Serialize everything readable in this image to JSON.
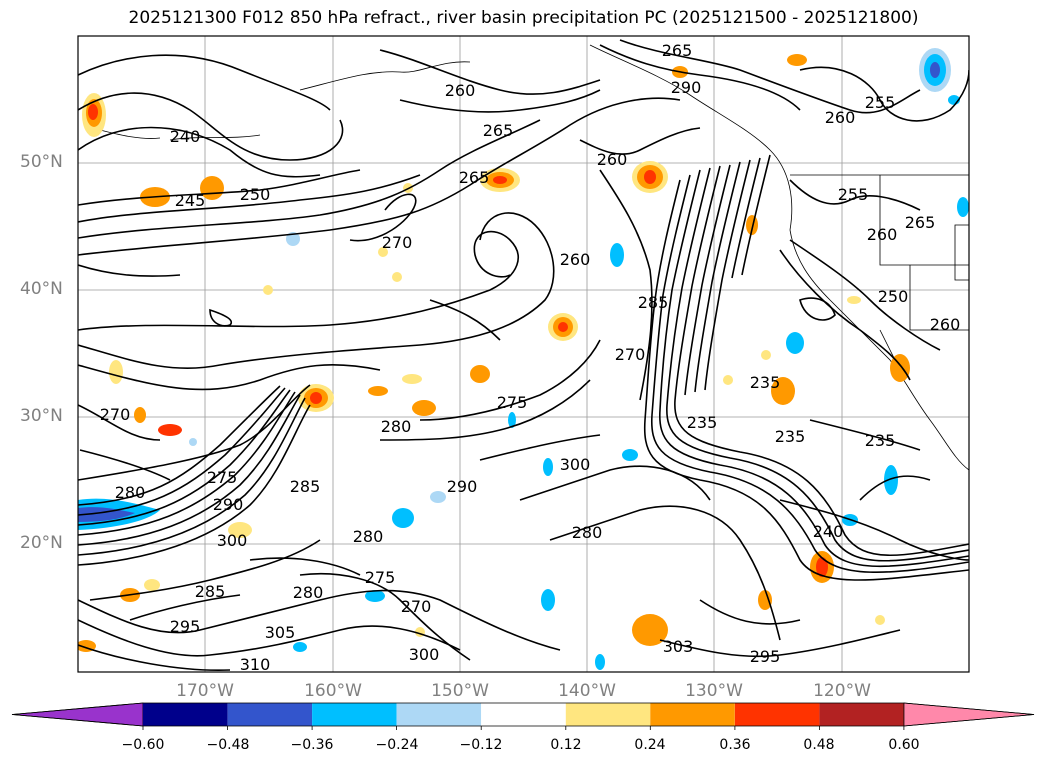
{
  "title": "2025121300 F012 850 hPa refract., river basin precipitation PC (2025121500 - 2025121800)",
  "lat_labels": [
    "50°N",
    "40°N",
    "30°N",
    "20°N"
  ],
  "lon_labels": [
    "170°W",
    "160°W",
    "150°W",
    "140°W",
    "130°W",
    "120°W"
  ],
  "contour_labels": [
    "265",
    "260",
    "265",
    "255",
    "260",
    "270",
    "240",
    "245",
    "250",
    "265",
    "260",
    "260",
    "255",
    "270",
    "280",
    "285",
    "275",
    "275",
    "270",
    "280",
    "285",
    "290",
    "300",
    "280",
    "280",
    "280",
    "285",
    "275",
    "270",
    "290",
    "295",
    "300",
    "305",
    "310",
    "300",
    "235",
    "235",
    "235",
    "235",
    "240",
    "250",
    "260",
    "265",
    "260",
    "290",
    "303",
    "295"
  ],
  "colorbar": {
    "ticks": [
      "−0.60",
      "−0.48",
      "−0.36",
      "−0.24",
      "−0.12",
      "0.12",
      "0.24",
      "0.36",
      "0.48",
      "0.60"
    ],
    "colors": [
      "#9933cc",
      "#00008b",
      "#3355cc",
      "#00bfff",
      "#add8f5",
      "#ffffff",
      "#ffe680",
      "#ff9900",
      "#ff3300",
      "#b22222",
      "#ff88aa"
    ]
  },
  "colors": {
    "positive_strong": "#ff3300",
    "positive_mid": "#ff9900",
    "positive_weak": "#ffe680",
    "negative_mid": "#00bfff",
    "negative_weak": "#add8f5",
    "negative_strong": "#3355cc"
  }
}
